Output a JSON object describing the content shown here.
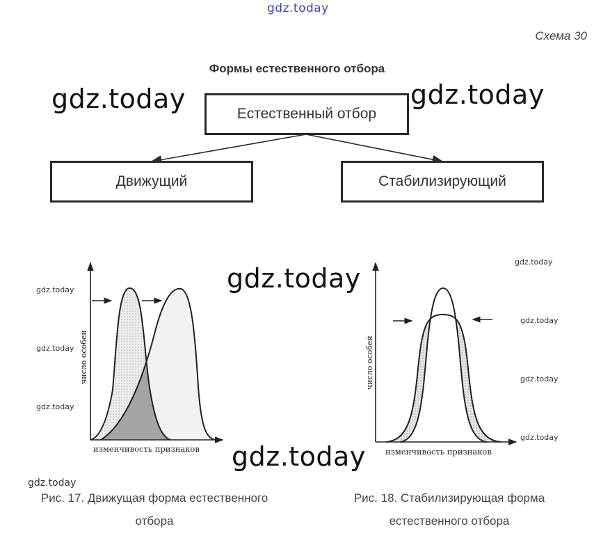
{
  "watermark_top": "gdz.today",
  "watermark": "gdz.today",
  "scheme_number": "Схема 30",
  "title": "Формы естественного отбора",
  "diagram": {
    "root": "Естественный отбор",
    "left_child": "Движущий",
    "right_child": "Стабилизирующий"
  },
  "figure17": {
    "ylabel": "число особей",
    "xlabel": "изменчивость признаков",
    "caption_line1": "Рис. 17. Движущая форма естественного",
    "caption_line2": "отбора"
  },
  "figure18": {
    "ylabel": "число особей",
    "xlabel": "изменчивость признаков",
    "caption_line1": "Рис. 18. Стабилизирующая форма",
    "caption_line2": "естественного отбора"
  }
}
